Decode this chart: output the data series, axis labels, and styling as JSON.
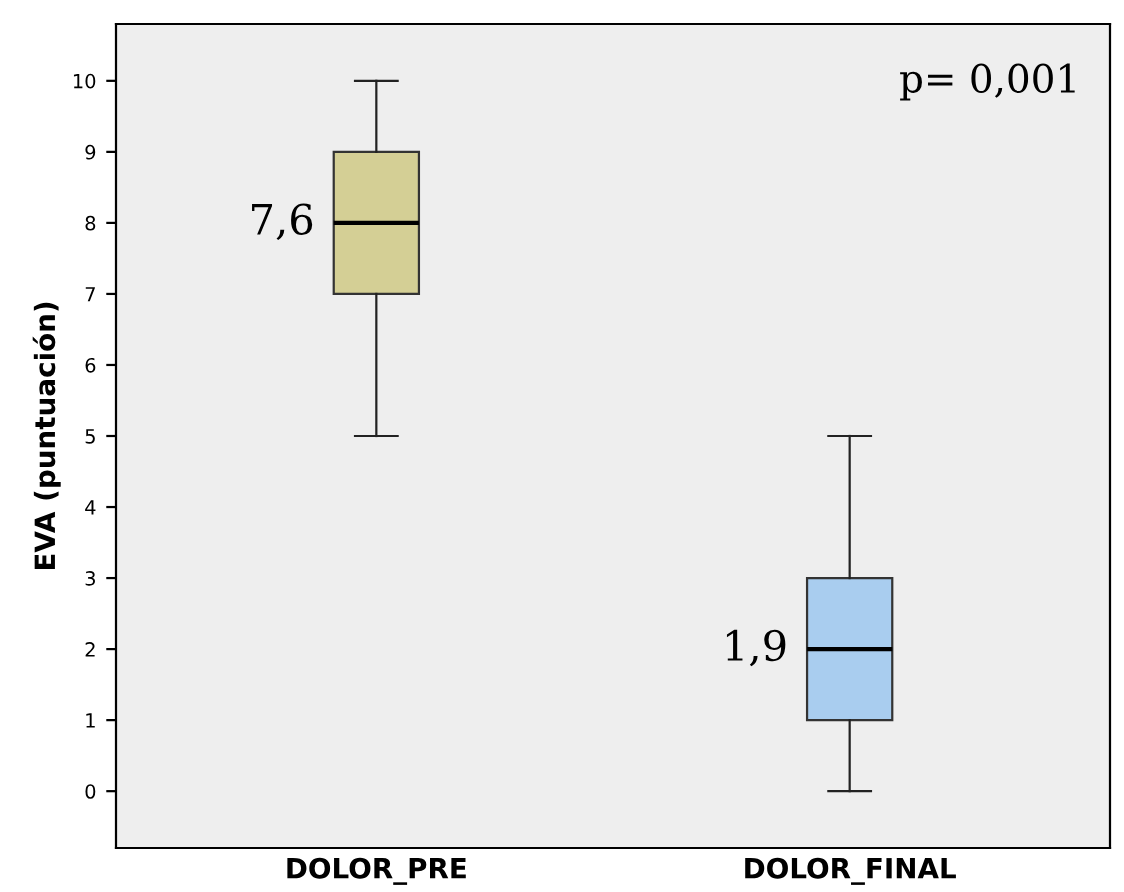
{
  "chart_data": {
    "type": "box",
    "ylabel": "EVA (puntuación)",
    "categories": [
      "DOLOR_PRE",
      "DOLOR_FINAL"
    ],
    "colors": [
      "#d4cf95",
      "#a9cdef"
    ],
    "boxes": [
      {
        "low": 5,
        "q1": 7,
        "median": 8,
        "q3": 9,
        "high": 10
      },
      {
        "low": 0,
        "q1": 1,
        "median": 2,
        "q3": 3,
        "high": 5
      }
    ],
    "ylim": [
      -0.8,
      10.8
    ],
    "yticks": [
      0,
      1,
      2,
      3,
      4,
      5,
      6,
      7,
      8,
      9,
      10
    ],
    "grid": false,
    "annotations": [
      {
        "text": "7,6",
        "x": "DOLOR_PRE",
        "y": 8
      },
      {
        "text": "1,9",
        "x": "DOLOR_FINAL",
        "y": 2
      },
      "p= 0,001"
    ]
  }
}
